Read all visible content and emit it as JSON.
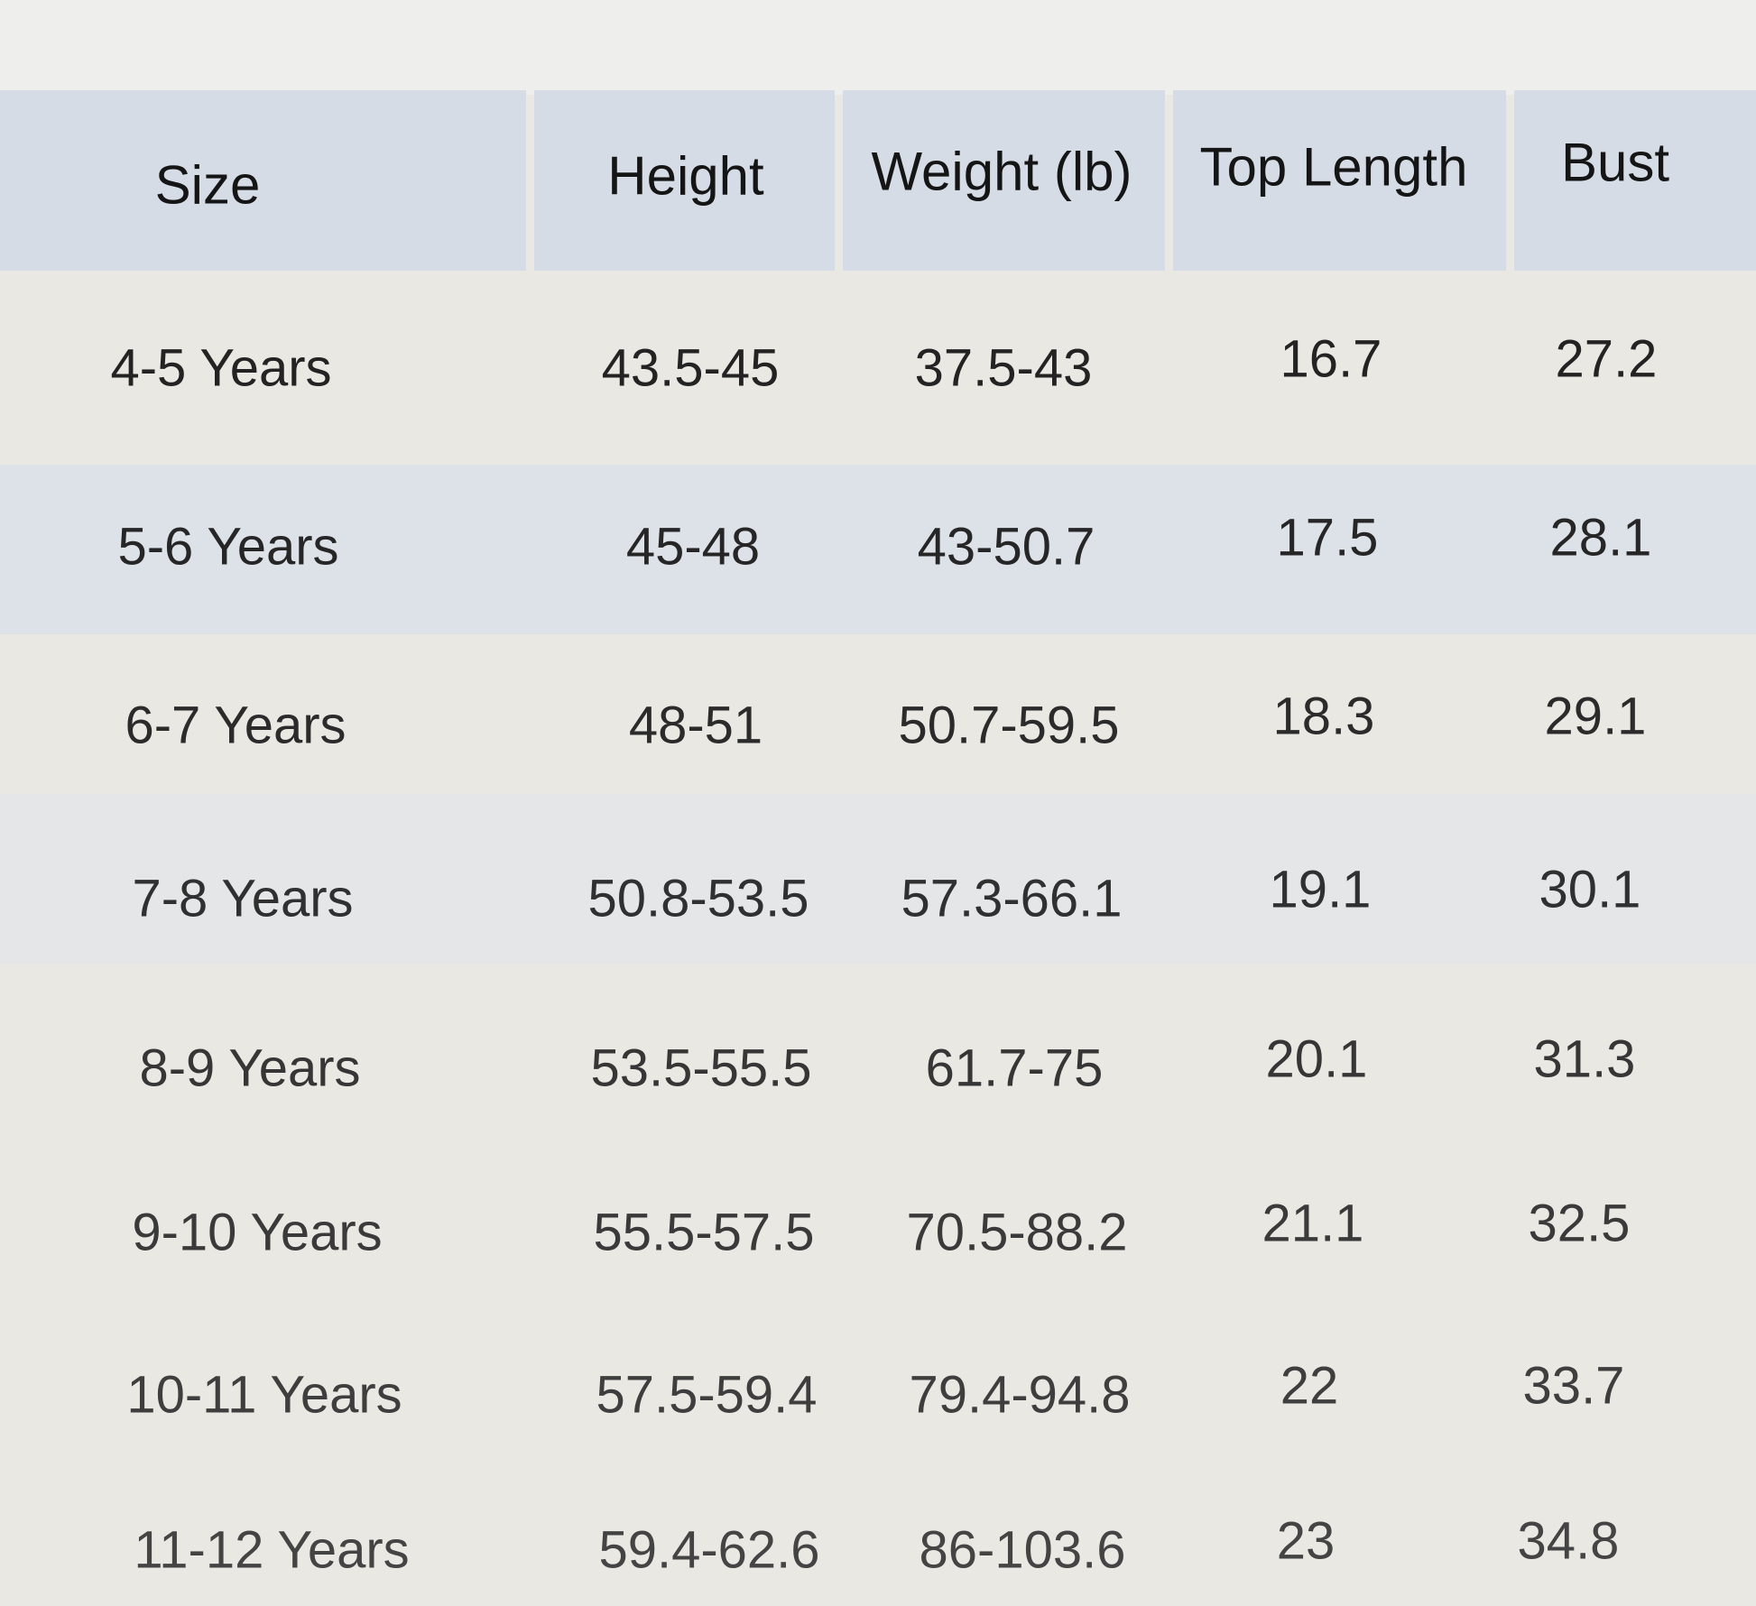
{
  "table": {
    "headers": [
      "Size",
      "Height",
      "Weight (lb)",
      "Top Length",
      "Bust"
    ],
    "rows": [
      [
        "4-5 Years",
        "43.5-45",
        "37.5-43",
        "16.7",
        "27.2"
      ],
      [
        "5-6 Years",
        "45-48",
        "43-50.7",
        "17.5",
        "28.1"
      ],
      [
        "6-7 Years",
        "48-51",
        "50.7-59.5",
        "18.3",
        "29.1"
      ],
      [
        "7-8 Years",
        "50.8-53.5",
        "57.3-66.1",
        "19.1",
        "30.1"
      ],
      [
        "8-9 Years",
        "53.5-55.5",
        "61.7-75",
        "20.1",
        "31.3"
      ],
      [
        "9-10 Years",
        "55.5-57.5",
        "70.5-88.2",
        "21.1",
        "32.5"
      ],
      [
        "10-11 Years",
        "57.5-59.4",
        "79.4-94.8",
        "22",
        "33.7"
      ],
      [
        "11-12 Years",
        "59.4-62.6",
        "86-103.6",
        "23",
        "34.8"
      ]
    ]
  },
  "colors": {
    "header_bg": "#d5dce5",
    "band_bg": "#dde2e8",
    "page_bg": "#e9e8e3"
  }
}
